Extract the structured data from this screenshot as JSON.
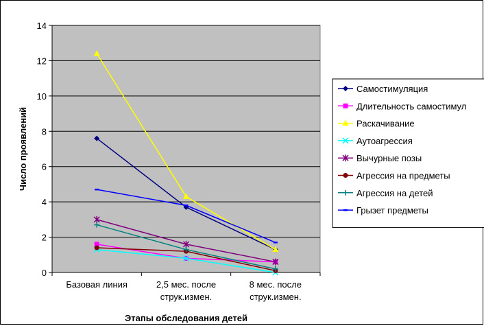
{
  "chart_data": {
    "type": "line",
    "title": "",
    "xlabel": "Этапы обследования детей",
    "ylabel": "Число проявлений",
    "categories": [
      [
        "Базовая линия"
      ],
      [
        "2,5 мес. после",
        "струк.измен."
      ],
      [
        "8 мес. после",
        "струк.измен."
      ]
    ],
    "ylim": [
      0,
      14
    ],
    "yticks": [
      0,
      2,
      4,
      6,
      8,
      10,
      12,
      14
    ],
    "grid": true,
    "plot_background": "#c0c0c0",
    "legend_position": "right",
    "series": [
      {
        "name": "Самостимуляция",
        "values": [
          7.6,
          3.7,
          1.3
        ],
        "color": "#000080",
        "marker": "diamond"
      },
      {
        "name": "Длительность самостимул",
        "values": [
          1.6,
          0.8,
          0.6
        ],
        "color": "#ff00ff",
        "marker": "square"
      },
      {
        "name": "Раскачивание",
        "values": [
          12.4,
          4.3,
          1.3
        ],
        "color": "#ffff00",
        "marker": "triangle"
      },
      {
        "name": "Аутоагрессия",
        "values": [
          1.3,
          0.8,
          0.0
        ],
        "color": "#00ffff",
        "marker": "x"
      },
      {
        "name": "Вычурные позы",
        "values": [
          3.0,
          1.6,
          0.6
        ],
        "color": "#800080",
        "marker": "star"
      },
      {
        "name": "Агрессия на предметы",
        "values": [
          1.4,
          1.2,
          0.1
        ],
        "color": "#800000",
        "marker": "circle"
      },
      {
        "name": "Агрессия на детей",
        "values": [
          2.7,
          1.3,
          0.2
        ],
        "color": "#008080",
        "marker": "plus"
      },
      {
        "name": "Грызет предметы",
        "values": [
          4.7,
          3.8,
          1.7
        ],
        "color": "#0000ff",
        "marker": "dash"
      }
    ]
  }
}
